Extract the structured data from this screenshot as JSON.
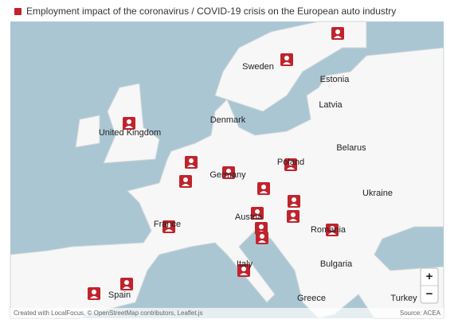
{
  "header": {
    "title": "Employment impact of the coronavirus / COVID-19 crisis on the European auto industry"
  },
  "map": {
    "countries": [
      "Sweden",
      "Estonia",
      "Latvia",
      "Denmark",
      "United Kingdom",
      "Belarus",
      "Poland",
      "Germany",
      "Ukraine",
      "Austria",
      "France",
      "Romania",
      "Italy",
      "Bulgaria",
      "Spain",
      "Greece",
      "Turkey"
    ],
    "zoom_in": "+",
    "zoom_out": "−",
    "attribution": "Created with LocalFocus, © OpenStreetMap contributors, Leaflet.js",
    "source": "Source: ACEA"
  }
}
